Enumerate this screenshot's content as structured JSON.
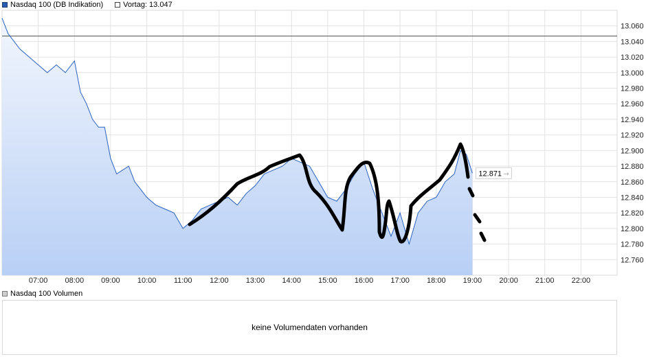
{
  "legend": {
    "series_label": "Nasdaq 100 (DB Indikation)",
    "prev_label": "Vortag: 13.047",
    "series_color": "#2a5db0",
    "prev_color": "#444444"
  },
  "volume": {
    "legend_label": "Nasdaq 100 Volumen",
    "empty_message": "keine Volumendaten vorhanden"
  },
  "chart_data": {
    "type": "area",
    "title": "",
    "xlabel": "",
    "ylabel": "",
    "x_range": [
      "06:00",
      "23:00"
    ],
    "ylim": [
      12740,
      13080
    ],
    "grid": true,
    "x_ticks": [
      "07:00",
      "08:00",
      "09:00",
      "10:00",
      "11:00",
      "12:00",
      "13:00",
      "14:00",
      "15:00",
      "16:00",
      "17:00",
      "18:00",
      "19:00",
      "20:00",
      "21:00",
      "22:00"
    ],
    "y_ticks": [
      "13.060",
      "13.040",
      "13.020",
      "13.000",
      "12.980",
      "12.960",
      "12.940",
      "12.920",
      "12.900",
      "12.880",
      "12.860",
      "12.840",
      "12.820",
      "12.800",
      "12.780",
      "12.760"
    ],
    "y_tick_values": [
      13060,
      13040,
      13020,
      13000,
      12980,
      12960,
      12940,
      12920,
      12900,
      12880,
      12860,
      12840,
      12820,
      12800,
      12780,
      12760
    ],
    "previous_close": 13047,
    "last_value": 12871,
    "last_label": "12.871",
    "series": [
      {
        "x": [
          "06:00",
          "06:10",
          "06:20",
          "06:30",
          "06:45",
          "07:00",
          "07:15",
          "07:30",
          "07:45",
          "08:00",
          "08:10",
          "08:20",
          "08:30",
          "08:40",
          "08:50",
          "09:00",
          "09:10",
          "09:20",
          "09:30",
          "09:40",
          "09:50",
          "10:00",
          "10:15",
          "10:30",
          "10:45",
          "11:00",
          "11:15",
          "11:30",
          "11:45",
          "12:00",
          "12:15",
          "12:30",
          "12:45",
          "13:00",
          "13:15",
          "13:30",
          "13:45",
          "14:00",
          "14:15",
          "14:30",
          "14:45",
          "15:00",
          "15:15",
          "15:30",
          "15:45",
          "16:00",
          "16:15",
          "16:30",
          "16:45",
          "17:00",
          "17:15",
          "17:30",
          "17:45",
          "18:00",
          "18:15",
          "18:30",
          "18:40",
          "18:50",
          "19:00"
        ],
        "values": [
          13070,
          13050,
          13040,
          13030,
          13020,
          13010,
          13000,
          13010,
          13000,
          13015,
          12975,
          12960,
          12940,
          12930,
          12930,
          12890,
          12870,
          12875,
          12880,
          12860,
          12850,
          12840,
          12830,
          12825,
          12820,
          12800,
          12810,
          12825,
          12830,
          12835,
          12840,
          12830,
          12845,
          12855,
          12870,
          12875,
          12880,
          12890,
          12885,
          12880,
          12860,
          12840,
          12835,
          12850,
          12870,
          12885,
          12850,
          12820,
          12790,
          12820,
          12780,
          12820,
          12835,
          12840,
          12860,
          12870,
          12900,
          12895,
          12871
        ]
      }
    ]
  }
}
